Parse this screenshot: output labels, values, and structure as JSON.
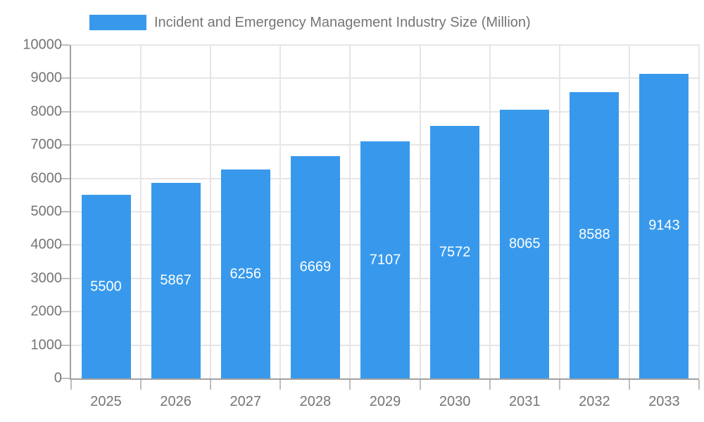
{
  "legend": {
    "label": "Incident and Emergency Management Industry Size (Million)"
  },
  "chart_data": {
    "type": "bar",
    "title": "Incident and Emergency Management Industry Size (Million)",
    "categories": [
      "2025",
      "2026",
      "2027",
      "2028",
      "2029",
      "2030",
      "2031",
      "2032",
      "2033"
    ],
    "values": [
      5500,
      5867,
      6256,
      6669,
      7107,
      7572,
      8065,
      8588,
      9143
    ],
    "bar_value_labels": [
      "5500",
      "5867",
      "6256",
      "6669",
      "7107",
      "7572",
      "8065",
      "8588",
      "9143"
    ],
    "xlabel": "",
    "ylabel": "",
    "ylim": [
      0,
      10000
    ],
    "ytick_step": 1000,
    "ytick_labels": [
      "0",
      "1000",
      "2000",
      "3000",
      "4000",
      "5000",
      "6000",
      "7000",
      "8000",
      "9000",
      "10000"
    ],
    "grid": true,
    "legend_position": "top",
    "colors": {
      "bar": "#3899EC",
      "bar_label_text": "#ffffff",
      "axis_text": "#757575",
      "gridline": "#e6e6e6",
      "axis_line": "#a0a0a0",
      "tick": "#bdbdbd"
    }
  }
}
